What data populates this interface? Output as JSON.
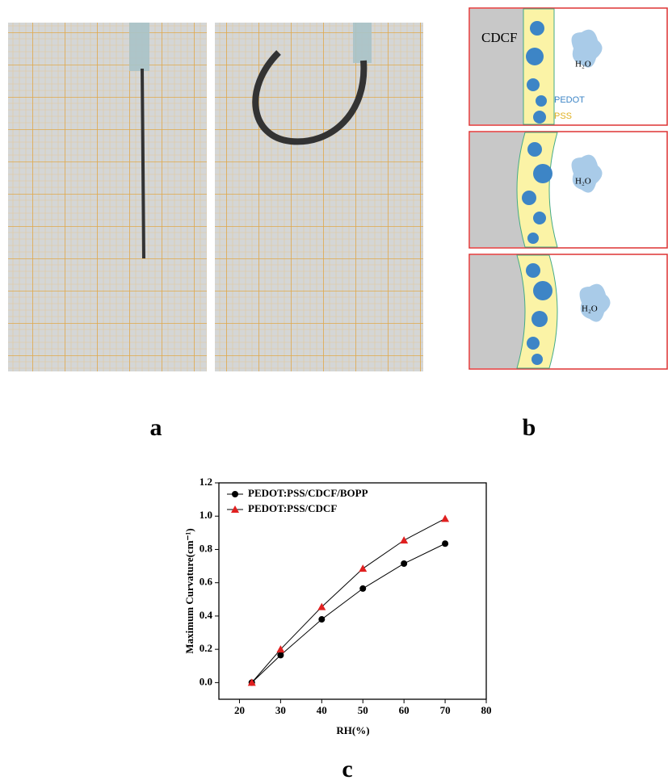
{
  "panel_labels": {
    "a": "a",
    "b": "b",
    "c": "c"
  },
  "diagram": {
    "substrate": "CDCF",
    "water": [
      "H₂O",
      "H₂O",
      "H₂O"
    ],
    "pedot": "PEDOT",
    "pss": "PSS"
  },
  "chart_data": {
    "type": "line",
    "xlabel": "RH(%)",
    "ylabel": "Maximum Curvature(cm⁻¹)",
    "x": [
      23,
      30,
      40,
      50,
      60,
      70
    ],
    "series": [
      {
        "name": "PEDOT:PSS/CDCF/BOPP",
        "color": "#000000",
        "marker": "circle",
        "values": [
          0,
          0.165,
          0.38,
          0.565,
          0.715,
          0.835
        ]
      },
      {
        "name": "PEDOT:PSS/CDCF",
        "color": "#e02020",
        "marker": "triangle",
        "values": [
          0,
          0.2,
          0.455,
          0.685,
          0.855,
          0.985
        ]
      }
    ],
    "xlim": [
      15,
      80
    ],
    "xticks": [
      20,
      30,
      40,
      50,
      60,
      70,
      80
    ],
    "ylim": [
      -0.1,
      1.2
    ],
    "yticks": [
      {
        "value": 0,
        "label": "0.0"
      },
      0.2,
      0.4,
      0.6,
      0.8,
      {
        "value": 1,
        "label": "1.0"
      },
      1.2
    ],
    "legend": "upper left",
    "grid": false
  }
}
